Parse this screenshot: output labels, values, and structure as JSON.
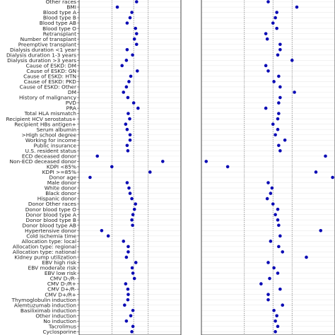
{
  "chart_data": {
    "type": "scatter",
    "categories": [
      "Other races",
      "BMI",
      "Blood type A",
      "Blood type B",
      "Blood type AB",
      "Blood type O",
      "Retransplant",
      "Number of transplant",
      "Preemptive transplant",
      "Dialysis duration <1 year",
      "Dialysis duration 1-3 years",
      "Dialysis duration >3 years",
      "Cause of ESKD: DM",
      "Cause of ESKD: GN",
      "Cause of ESKD: HTN",
      "Cause of ESKD: PKD",
      "Cause of ESKD: Other",
      "DM",
      "History of malignancy",
      "PVD",
      "PRA",
      "Total HLA mismatch",
      "Recipient HCV serostatus+",
      "Recipient HBs antigen+",
      "Serum albumin",
      ">High school degree",
      "Working for income",
      "Public insurance",
      "U.S. resident status",
      "ECD deceased donor",
      "Non-ECD deceased donor",
      "KDPI <85%",
      "KDPI >=85%",
      "Donor age",
      "Male donor",
      "White donor",
      "Black donor",
      "Hispanic donor",
      "Donor Other races",
      "Donor blood type O",
      "Donor blood type A",
      "Donor blood type B",
      "Donor blood type AB",
      "Hypertensive donor",
      "Cold ischemia time",
      "Allocation type: local",
      "Allocation type: regional",
      "Allocation type: national",
      "Kidney pump utilization",
      "EBV high risk",
      "EBV moderate risk",
      "EBV low risk",
      "CMV D-/R-",
      "CMV D-/R+",
      "CMV D+/R-",
      "CMV D+/R+",
      "Thymoglobulin induction",
      "Alemtuzumab induction",
      "Basiliximab induction",
      "Other induction",
      "No induction",
      "Tacrolimus",
      "Cyclosporine"
    ],
    "panels": [
      {
        "xlim": [
          -1.4,
          1.4
        ],
        "reference_lines": [
          -0.5,
          0.1,
          0.5
        ],
        "values": [
          0.18,
          -0.35,
          0.05,
          0.0,
          -0.08,
          0.15,
          0.18,
          0.12,
          0.18,
          -0.08,
          0.07,
          -0.1,
          -0.22,
          0.2,
          0.02,
          -0.03,
          -0.1,
          -0.18,
          -0.06,
          0.1,
          0.22,
          -0.05,
          -0.01,
          -0.12,
          -0.08,
          0.0,
          0.0,
          -0.08,
          -0.06,
          -0.9,
          0.9,
          -0.5,
          0.55,
          -1.1,
          -0.08,
          -0.03,
          0.0,
          0.05,
          0.15,
          0.12,
          0.08,
          0.05,
          0.07,
          -0.78,
          -0.6,
          -0.18,
          -0.05,
          -0.05,
          -0.1,
          0.16,
          0.06,
          0.08,
          0.12,
          -0.12,
          -0.06,
          -0.05,
          -0.06,
          -0.15,
          0.08,
          0.02,
          -0.1,
          0.08,
          0.05
        ]
      },
      {
        "xlim": [
          -1.4,
          1.4
        ],
        "reference_lines": [
          -0.5,
          0.1,
          0.5
        ],
        "values": [
          0.0,
          0.6,
          0.18,
          0.15,
          0.1,
          0.18,
          -0.05,
          -0.02,
          0.25,
          0.25,
          0.2,
          0.5,
          -0.05,
          0.0,
          0.22,
          0.12,
          0.25,
          0.55,
          0.25,
          0.22,
          -0.05,
          0.22,
          0.2,
          0.1,
          0.2,
          0.15,
          0.35,
          0.22,
          0.25,
          1.2,
          -1.3,
          -0.85,
          1.0,
          1.35,
          0.0,
          0.08,
          0.05,
          -0.02,
          0.1,
          0.2,
          0.15,
          0.2,
          0.22,
          1.1,
          0.25,
          0.05,
          0.22,
          0.3,
          0.8,
          0.0,
          0.12,
          0.2,
          0.03,
          -0.15,
          0.25,
          0.0,
          0.0,
          0.3,
          0.12,
          0.18,
          0.15,
          0.2,
          0.15
        ]
      }
    ],
    "marker_color": "#0a0ab4",
    "grid": true,
    "title": "",
    "xlabel": "",
    "ylabel": ""
  }
}
